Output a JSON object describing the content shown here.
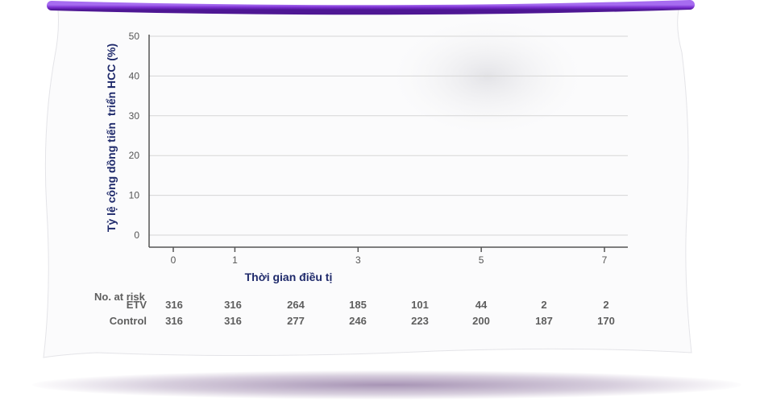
{
  "chart_data": {
    "type": "line",
    "title": "",
    "ylabel": "Tỷ lệ cộng dồng tiến  triển HCC (%)",
    "xlabel": "Thời gian điều tị",
    "ylim": [
      0,
      50
    ],
    "yticks": [
      0,
      10,
      20,
      30,
      40,
      50
    ],
    "xlim": [
      0,
      7
    ],
    "xticks": [
      0,
      1,
      3,
      5,
      7
    ],
    "grid": true,
    "series": []
  },
  "at_risk": {
    "header": "No. at risk",
    "rows": [
      {
        "label": "ETV",
        "values": [
          "316",
          "316",
          "264",
          "185",
          "101",
          "44",
          "2",
          "2"
        ]
      },
      {
        "label": "Control",
        "values": [
          "316",
          "316",
          "277",
          "246",
          "223",
          "200",
          "187",
          "170"
        ]
      }
    ]
  },
  "colors": {
    "banner_rod": "#7b2fd0",
    "axis_title": "#1f2a6b",
    "tick_text": "#555555",
    "table_text": "#5e5e5e"
  }
}
